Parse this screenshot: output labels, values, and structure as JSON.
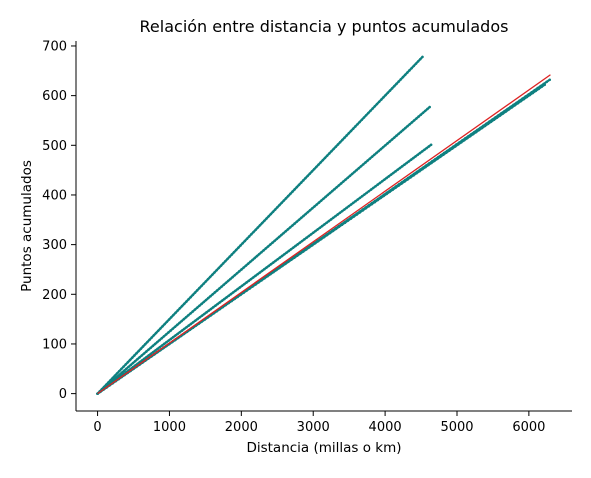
{
  "chart_data": {
    "type": "scatter",
    "title": "Relación entre distancia y puntos acumulados",
    "xlabel": "Distancia (millas o km)",
    "ylabel": "Puntos acumulados",
    "xlim": [
      -300,
      6600
    ],
    "ylim": [
      -35,
      710
    ],
    "xticks": [
      0,
      1000,
      2000,
      3000,
      4000,
      5000,
      6000
    ],
    "yticks": [
      0,
      100,
      200,
      300,
      400,
      500,
      600,
      700
    ],
    "grid": false,
    "legend": "none",
    "point_color": "#0f8080",
    "line_color": "#dd2222",
    "series": [
      {
        "x_start": 0,
        "x_end": 4520,
        "y_start": 0,
        "y_end": 678,
        "slope": 0.15
      },
      {
        "x_start": 0,
        "x_end": 4620,
        "y_start": 0,
        "y_end": 577,
        "slope": 0.125
      },
      {
        "x_start": 0,
        "x_end": 4640,
        "y_start": 0,
        "y_end": 501,
        "slope": 0.108
      },
      {
        "x_start": 0,
        "x_end": 6290,
        "y_start": 0,
        "y_end": 632,
        "slope": 0.1005
      },
      {
        "x_start": 0,
        "x_end": 6220,
        "y_start": 0,
        "y_end": 622,
        "slope": 0.1
      }
    ],
    "trend_line": {
      "x": [
        0,
        6300
      ],
      "y": [
        0,
        642
      ]
    }
  }
}
